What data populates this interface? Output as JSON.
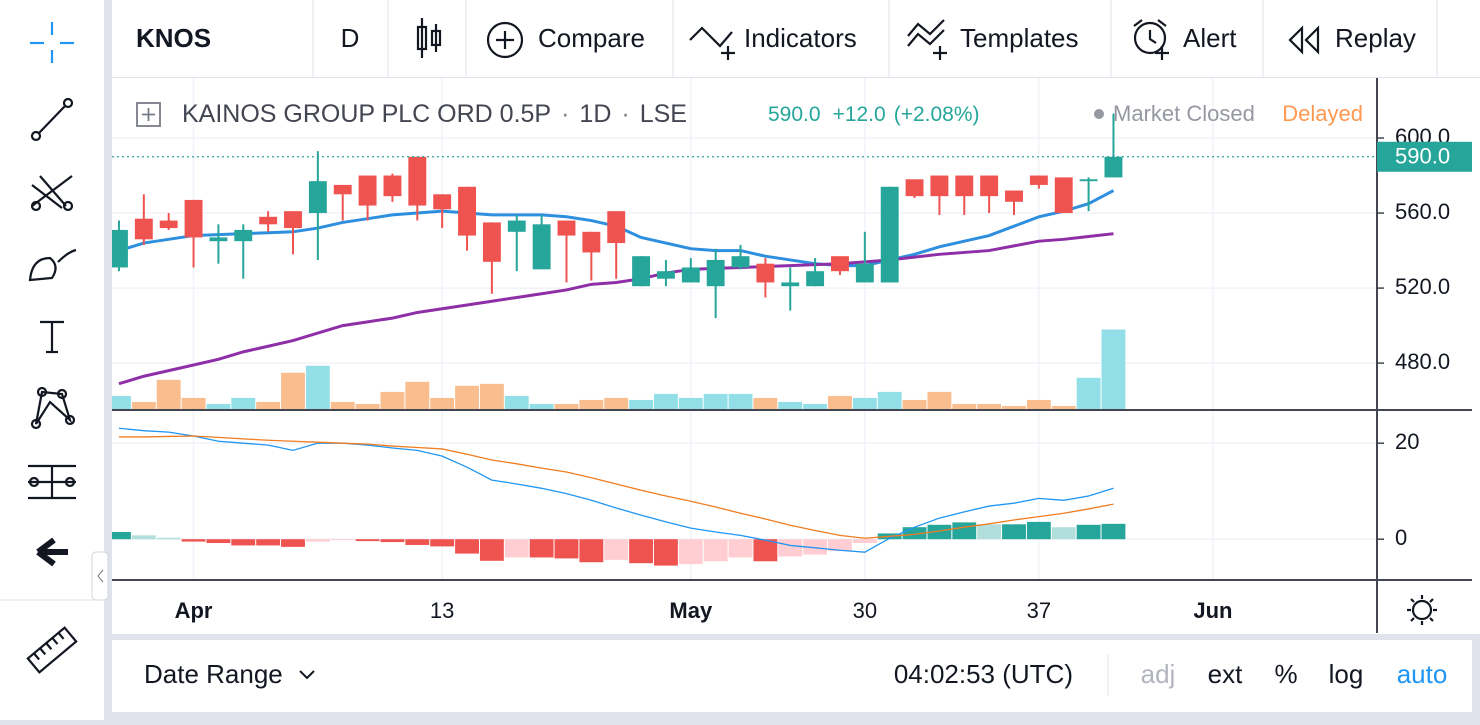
{
  "toolbar": {
    "symbol": "KNOS",
    "interval": "D",
    "items": [
      "Compare",
      "Indicators",
      "Templates",
      "Alert",
      "Replay"
    ]
  },
  "legend": {
    "name": "KAINOS GROUP PLC ORD 0.5P",
    "interval": "1D",
    "exchange": "LSE",
    "last": "590.0",
    "change": "+12.0",
    "change_pct": "(+2.08%)",
    "status": "Market Closed",
    "delay": "Delayed"
  },
  "chart_data": [
    {
      "type": "candlestick",
      "open": [
        531,
        557,
        556,
        567,
        545,
        545,
        558,
        561,
        560,
        575,
        580,
        580,
        590,
        570,
        574,
        555,
        550,
        530,
        556,
        550,
        561,
        521,
        525,
        523,
        521,
        531,
        533,
        521,
        521,
        537,
        523,
        523,
        578,
        580,
        580,
        580,
        572,
        580,
        579,
        577,
        579
      ],
      "high": [
        556,
        570,
        560,
        567,
        554,
        554,
        561,
        561,
        593,
        575,
        580,
        581,
        590,
        570,
        574,
        555,
        559,
        559,
        556,
        550,
        561,
        537,
        535,
        536,
        541,
        543,
        536,
        531,
        536,
        537,
        550,
        574,
        578,
        580,
        580,
        580,
        572,
        580,
        579,
        579,
        613
      ],
      "low": [
        529,
        543,
        551,
        531,
        533,
        525,
        550,
        538,
        535,
        556,
        556,
        566,
        556,
        552,
        540,
        517,
        529,
        530,
        523,
        524,
        525,
        521,
        521,
        523,
        504,
        530,
        515,
        508,
        521,
        527,
        523,
        523,
        568,
        559,
        559,
        560,
        559,
        573,
        560,
        561,
        579
      ],
      "close": [
        551,
        546,
        552,
        547,
        547,
        551,
        554,
        552,
        577,
        570,
        564,
        569,
        564,
        562,
        548,
        534,
        556,
        554,
        548,
        539,
        544,
        537,
        529,
        531,
        535,
        537,
        523,
        523,
        529,
        529,
        533,
        574,
        569,
        569,
        569,
        569,
        566,
        575,
        560,
        578,
        590
      ],
      "up_color": "#26a69a",
      "down_color": "#ef5350",
      "overlays": [
        {
          "color": "#2e8fdf",
          "values": [
            540,
            544,
            546,
            548,
            548.5,
            549,
            549.5,
            550,
            552,
            555,
            557,
            559,
            560,
            561,
            560,
            559,
            559,
            559,
            558,
            556,
            553,
            547,
            544,
            541,
            540,
            540,
            537,
            535,
            533,
            532,
            532,
            535,
            538,
            542,
            545,
            548,
            553,
            558,
            561,
            565,
            572
          ]
        },
        {
          "color": "#8e2fa8",
          "values": [
            469,
            473,
            476,
            479,
            482,
            486,
            489,
            492,
            496,
            500,
            502,
            504,
            507,
            509,
            511,
            513,
            515,
            517,
            519,
            522,
            523,
            525,
            528,
            530,
            530.5,
            531,
            531.5,
            532,
            532.5,
            533,
            534,
            535,
            536.5,
            538,
            539,
            540,
            542.5,
            545,
            546,
            547.5,
            549
          ]
        }
      ],
      "volume": {
        "values": [
          14,
          8,
          30,
          12,
          6,
          12,
          8,
          37,
          44,
          8,
          6,
          18,
          28,
          12,
          24,
          26,
          14,
          6,
          6,
          10,
          12,
          10,
          16,
          12,
          16,
          16,
          12,
          8,
          6,
          14,
          12,
          18,
          10,
          18,
          6,
          6,
          4,
          10,
          4,
          32,
          80
        ],
        "up_color": "#92dfe8",
        "down_color": "#f9bd8e",
        "vlim": [
          0,
          330
        ]
      },
      "last_price": {
        "value": 590,
        "label": "590.0",
        "color": "#26a69a"
      },
      "xlim": [
        -0.28,
        50.6
      ],
      "xticks": [
        {
          "value": 3,
          "label": "Apr"
        },
        13,
        {
          "value": 23,
          "label": "May"
        },
        30,
        37,
        {
          "value": 44,
          "label": "Jun"
        }
      ],
      "ylim": [
        455,
        632
      ],
      "yticks": [
        {
          "value": 480,
          "label": "480.0"
        },
        {
          "value": 520,
          "label": "520.0"
        },
        {
          "value": 560,
          "label": "560.0"
        },
        {
          "value": 600,
          "label": "600.0"
        }
      ],
      "grid": true
    },
    {
      "type": "macd",
      "series": [
        {
          "color": "#2196f3",
          "values": [
            23.1,
            22.6,
            22.3,
            21.5,
            20.4,
            20,
            19.6,
            18.5,
            20,
            20,
            19.6,
            19,
            18.5,
            17.3,
            15,
            12.3,
            11.5,
            10.6,
            9.5,
            8.1,
            6.5,
            5,
            3.6,
            2.3,
            1.5,
            0.8,
            -0.2,
            -1.3,
            -1.8,
            -2.3,
            -2.7,
            0.2,
            2.5,
            4.4,
            5.7,
            6.9,
            7.5,
            8.5,
            8.1,
            9,
            10.6
          ]
        },
        {
          "color": "#ef7d22",
          "values": [
            21.3,
            21.3,
            21.4,
            21.5,
            21.2,
            20.9,
            20.6,
            20.4,
            20.2,
            20,
            19.8,
            19.4,
            19.1,
            18.8,
            17.7,
            16.5,
            15.7,
            14.8,
            14,
            12.8,
            11.5,
            10.2,
            9,
            7.9,
            6.7,
            5.4,
            4.2,
            2.9,
            1.8,
            0.8,
            0.2,
            0.6,
            1,
            1.7,
            2.5,
            3.2,
            4,
            4.7,
            5.4,
            6.3,
            7.3
          ]
        }
      ],
      "histogram": {
        "values": [
          1.5,
          0.8,
          0.3,
          -0.5,
          -0.8,
          -1.3,
          -1.3,
          -1.6,
          -0.5,
          -0.2,
          -0.4,
          -0.6,
          -1.2,
          -1.5,
          -3,
          -4.5,
          -3.8,
          -3.8,
          -4,
          -4.8,
          -4.3,
          -5,
          -5.5,
          -5.2,
          -4.6,
          -3.8,
          -4.6,
          -3.6,
          -3.2,
          -2.5,
          -0.8,
          1.2,
          2.5,
          3,
          3.5,
          3.1,
          3.1,
          3.6,
          2.5,
          3,
          3.2
        ],
        "colors": [
          "#26a69a",
          "#b2dfdb",
          "#ef5350",
          "#ffcdd2"
        ]
      },
      "ylim": [
        -8.5,
        26.7
      ],
      "yticks": [
        0,
        20
      ],
      "grid": true
    }
  ],
  "bottom_bar": {
    "date_range": "Date Range",
    "time": "04:02:53 (UTC)",
    "options": [
      "adj",
      "ext",
      "%",
      "log",
      "auto"
    ]
  }
}
